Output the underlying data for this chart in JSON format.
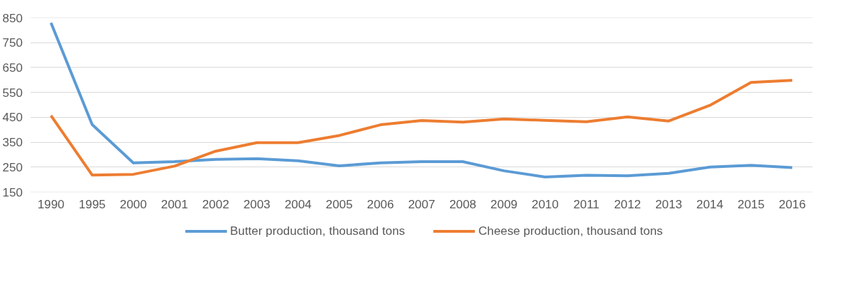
{
  "chart_data": {
    "type": "line",
    "categories": [
      "1990",
      "1995",
      "2000",
      "2001",
      "2002",
      "2003",
      "2004",
      "2005",
      "2006",
      "2007",
      "2008",
      "2009",
      "2010",
      "2011",
      "2012",
      "2013",
      "2014",
      "2015",
      "2016"
    ],
    "series": [
      {
        "name": "Butter production, thousand tons",
        "color": "#5b9bd5",
        "values": [
          830,
          421,
          267,
          272,
          281,
          284,
          275,
          255,
          267,
          272,
          272,
          235,
          210,
          217,
          215,
          225,
          250,
          257,
          248
        ]
      },
      {
        "name": "Cheese production, thousand tons",
        "color": "#ed7d31",
        "values": [
          457,
          218,
          221,
          254,
          314,
          348,
          348,
          377,
          420,
          437,
          431,
          443,
          438,
          432,
          452,
          435,
          498,
          590,
          599
        ]
      }
    ],
    "ylim": [
      150,
      850
    ],
    "yticks": [
      150,
      250,
      350,
      450,
      550,
      650,
      750,
      850
    ],
    "grid": "y",
    "legend": "bottom",
    "line_style": "solid"
  }
}
